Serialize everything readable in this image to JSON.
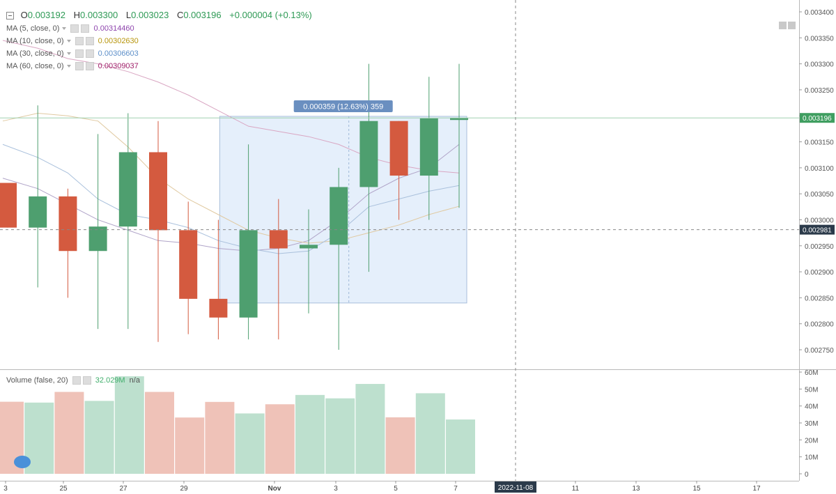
{
  "ohlc": {
    "o_label": "O",
    "o": "0.003192",
    "h_label": "H",
    "h": "0.003300",
    "l_label": "L",
    "l": "0.003023",
    "c_label": "C",
    "c": "0.003196",
    "change": "+0.000004 (+0.13%)"
  },
  "indicators": [
    {
      "label": "MA (5, close, 0)",
      "value": "0.00314460",
      "color": "#8e44ad"
    },
    {
      "label": "MA (10, close, 0)",
      "value": "0.00302630",
      "color": "#b7950b"
    },
    {
      "label": "MA (30, close, 0)",
      "value": "0.00306603",
      "color": "#5d8fc9"
    },
    {
      "label": "MA (60, close, 0)",
      "value": "0.00309037",
      "color": "#a0206a"
    }
  ],
  "volume_legend": {
    "label": "Volume (false, 20)",
    "value": "32.029M",
    "extra": "n/a",
    "value_color": "#3fae6a"
  },
  "measure_label": "0.000359 (12.63%) 359",
  "crosshair_price": "0.002981",
  "crosshair_date": "2022-11-08",
  "last_price": "0.003196",
  "colors": {
    "up": "#4e9f6f",
    "down": "#d45a3f",
    "vol_up": "#bde0ce",
    "vol_down": "#efc2b8",
    "measure_fill": "#e3eefb",
    "measure_stroke": "#9fb8d8",
    "measure_label_bg": "#6a8fc0",
    "last_price_bg": "#3f9e60",
    "crosshair_bg": "#2b3a4a"
  },
  "chart_data": {
    "type": "candlestick",
    "price_axis": {
      "ticks": [
        "0.002750",
        "0.002800",
        "0.002850",
        "0.002900",
        "0.002950",
        "0.003000",
        "0.003050",
        "0.003100",
        "0.003150",
        "0.003200",
        "0.003250",
        "0.003300",
        "0.003350",
        "0.003400"
      ],
      "range": [
        0.00273,
        0.00343
      ]
    },
    "volume_axis": {
      "ticks": [
        "0",
        "10M",
        "20M",
        "30M",
        "40M",
        "50M",
        "60M"
      ],
      "range": [
        0,
        60
      ]
    },
    "x_axis": {
      "ticks": [
        "3",
        "25",
        "27",
        "29",
        "Nov",
        "3",
        "5",
        "7",
        "11",
        "13",
        "15",
        "17"
      ]
    },
    "candles": [
      {
        "date": "Oct 23",
        "o": 0.003071,
        "h": 0.003071,
        "l": 0.002985,
        "c": 0.002985,
        "vol": 42.5
      },
      {
        "date": "Oct 24",
        "o": 0.002985,
        "h": 0.00322,
        "l": 0.00287,
        "c": 0.003045,
        "vol": 42.0
      },
      {
        "date": "Oct 25",
        "o": 0.003045,
        "h": 0.00306,
        "l": 0.00285,
        "c": 0.00294,
        "vol": 48.3
      },
      {
        "date": "Oct 26",
        "o": 0.00294,
        "h": 0.003165,
        "l": 0.00279,
        "c": 0.002987,
        "vol": 43.0
      },
      {
        "date": "Oct 27",
        "o": 0.002987,
        "h": 0.003205,
        "l": 0.00279,
        "c": 0.00313,
        "vol": 57.5
      },
      {
        "date": "Oct 28",
        "o": 0.00313,
        "h": 0.00319,
        "l": 0.002765,
        "c": 0.00298,
        "vol": 48.3
      },
      {
        "date": "Oct 29",
        "o": 0.00298,
        "h": 0.003035,
        "l": 0.00278,
        "c": 0.002848,
        "vol": 33.2
      },
      {
        "date": "Oct 30",
        "o": 0.002848,
        "h": 0.003,
        "l": 0.00277,
        "c": 0.002812,
        "vol": 42.4
      },
      {
        "date": "Oct 31",
        "o": 0.002812,
        "h": 0.003145,
        "l": 0.00277,
        "c": 0.00298,
        "vol": 35.6
      },
      {
        "date": "Nov 1",
        "o": 0.00298,
        "h": 0.00304,
        "l": 0.00277,
        "c": 0.002945,
        "vol": 41.0
      },
      {
        "date": "Nov 2",
        "o": 0.002945,
        "h": 0.00302,
        "l": 0.00282,
        "c": 0.002952,
        "vol": 46.5
      },
      {
        "date": "Nov 3",
        "o": 0.002952,
        "h": 0.0031,
        "l": 0.00275,
        "c": 0.003063,
        "vol": 44.5
      },
      {
        "date": "Nov 4",
        "o": 0.003063,
        "h": 0.0033,
        "l": 0.0029,
        "c": 0.00319,
        "vol": 53.0
      },
      {
        "date": "Nov 5",
        "o": 0.00319,
        "h": 0.00319,
        "l": 0.003,
        "c": 0.003085,
        "vol": 33.3
      },
      {
        "date": "Nov 6",
        "o": 0.003085,
        "h": 0.003275,
        "l": 0.003,
        "c": 0.003195,
        "vol": 47.5
      },
      {
        "date": "Nov 7",
        "o": 0.003192,
        "h": 0.0033,
        "l": 0.003023,
        "c": 0.003196,
        "vol": 32.029
      }
    ],
    "ma_lines": [
      {
        "name": "MA (5, close, 0)",
        "color": "#b0a4c8",
        "values": [
          0.00308,
          0.00306,
          0.00303,
          0.003,
          0.00298,
          0.00296,
          0.002955,
          0.002945,
          0.00294,
          0.002945,
          0.00296,
          0.003,
          0.00305,
          0.00308,
          0.0031,
          0.003145
        ]
      },
      {
        "name": "MA (10, close, 0)",
        "color": "#e0c9a0",
        "values": [
          0.00319,
          0.003205,
          0.0032,
          0.00319,
          0.00314,
          0.00308,
          0.00304,
          0.00301,
          0.00298,
          0.002965,
          0.002955,
          0.00296,
          0.002975,
          0.00299,
          0.00301,
          0.003026
        ]
      },
      {
        "name": "MA (30, close, 0)",
        "color": "#a9c0dc",
        "values": [
          0.003145,
          0.00312,
          0.00309,
          0.00304,
          0.00301,
          0.003,
          0.002985,
          0.00296,
          0.002945,
          0.002935,
          0.00294,
          0.002975,
          0.003025,
          0.00304,
          0.003055,
          0.003066
        ]
      },
      {
        "name": "MA (60, close, 0)",
        "color": "#d9a6c2",
        "values": [
          0.003345,
          0.00333,
          0.00331,
          0.0033,
          0.003285,
          0.003265,
          0.00324,
          0.00321,
          0.00318,
          0.00317,
          0.00316,
          0.003145,
          0.00312,
          0.003105,
          0.003095,
          0.00309
        ]
      }
    ],
    "measure": {
      "from_index": 7,
      "to_index": 15,
      "low": 0.00284,
      "high": 0.003199
    },
    "crosshair": {
      "price": 0.002981
    }
  }
}
